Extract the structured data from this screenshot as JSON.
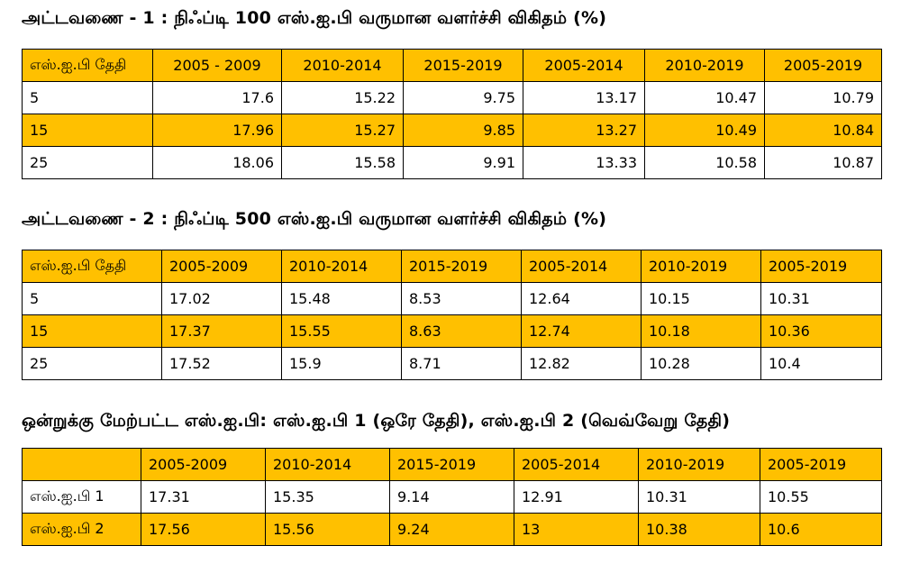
{
  "table1": {
    "title": "அட்டவணை - 1 : நிஃப்டி 100 எஸ்.ஐ.பி வருமான வளர்ச்சி விகிதம் (%)",
    "headers": [
      "எஸ்.ஐ.பி தேதி",
      "2005 - 2009",
      "2010-2014",
      "2015-2019",
      "2005-2014",
      "2010-2019",
      "2005-2019"
    ],
    "rows": [
      [
        "5",
        "17.6",
        "15.22",
        "9.75",
        "13.17",
        "10.47",
        "10.79"
      ],
      [
        "15",
        "17.96",
        "15.27",
        "9.85",
        "13.27",
        "10.49",
        "10.84"
      ],
      [
        "25",
        "18.06",
        "15.58",
        "9.91",
        "13.33",
        "10.58",
        "10.87"
      ]
    ]
  },
  "table2": {
    "title": "அட்டவணை - 2 : நிஃப்டி 500 எஸ்.ஐ.பி வருமான வளர்ச்சி விகிதம் (%)",
    "headers": [
      "எஸ்.ஐ.பி தேதி",
      "2005-2009",
      "2010-2014",
      "2015-2019",
      "2005-2014",
      "2010-2019",
      "2005-2019"
    ],
    "rows": [
      [
        "5",
        "17.02",
        "15.48",
        "8.53",
        "12.64",
        "10.15",
        "10.31"
      ],
      [
        "15",
        "17.37",
        "15.55",
        "8.63",
        "12.74",
        "10.18",
        "10.36"
      ],
      [
        "25",
        "17.52",
        "15.9",
        "8.71",
        "12.82",
        "10.28",
        "10.4"
      ]
    ]
  },
  "table3": {
    "title": "ஒன்றுக்கு மேற்பட்ட எஸ்.ஐ.பி: எஸ்.ஐ.பி 1 (ஒரே தேதி), எஸ்.ஐ.பி 2 (வெவ்வேறு தேதி)",
    "headers": [
      "",
      "2005-2009",
      "2010-2014",
      "2015-2019",
      "2005-2014",
      "2010-2019",
      "2005-2019"
    ],
    "rows": [
      [
        "எஸ்.ஐ.பி 1",
        "17.31",
        "15.35",
        "9.14",
        "12.91",
        "10.31",
        "10.55"
      ],
      [
        "எஸ்.ஐ.பி 2",
        "17.56",
        "15.56",
        "9.24",
        "13",
        "10.38",
        "10.6"
      ]
    ]
  },
  "colors": {
    "highlight": "#ffc000",
    "border": "#000000"
  }
}
